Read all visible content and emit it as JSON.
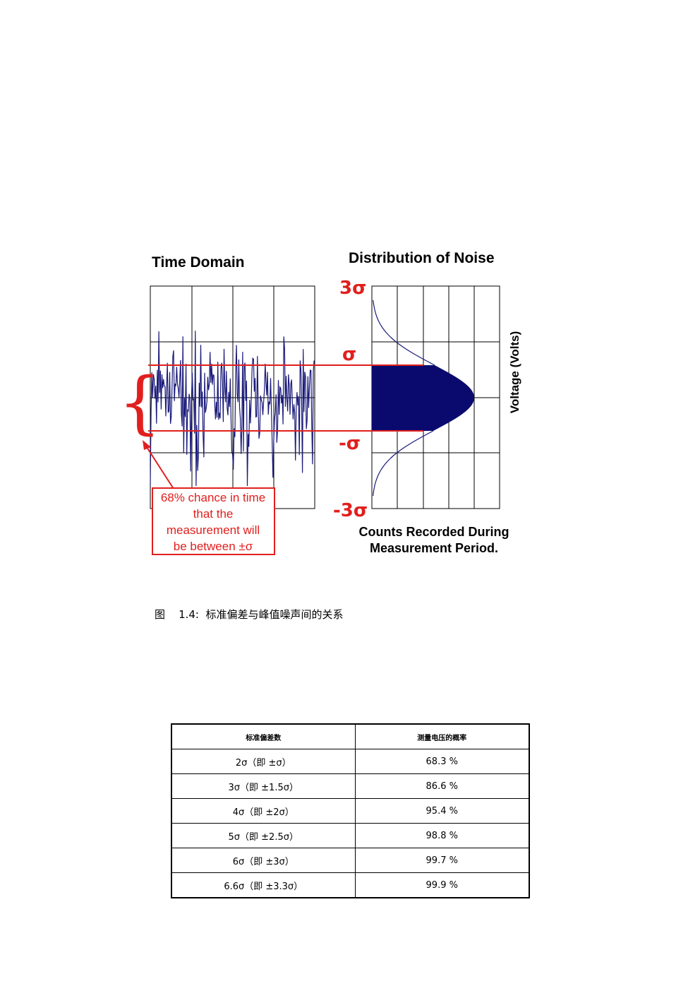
{
  "figure": {
    "time_domain_title": "Time Domain",
    "distribution_title": "Distribution of Noise",
    "sigma_labels": {
      "plus_3sigma": "3σ",
      "plus_sigma": "σ",
      "minus_sigma": "-σ",
      "minus_3sigma": "-3σ"
    },
    "voltage_axis_label": "Voltage (Volts)",
    "counts_label_line1": "Counts Recorded During",
    "counts_label_line2": "Measurement Period.",
    "callout_lines": [
      "68% chance in time",
      "that the",
      "measurement will",
      "be between ±σ"
    ],
    "brace_glyph": "{",
    "colors": {
      "noise": "#1a1a7a",
      "red": "#e0201e",
      "fill": "#0a0a6e"
    }
  },
  "caption": "图    1.4:  标准偏差与峰值噪声间的关系",
  "table": {
    "headers": [
      "标准偏差数",
      "测量电压的概率"
    ],
    "rows": [
      [
        "2σ（即 ±σ）",
        "68.3 %"
      ],
      [
        "3σ（即 ±1.5σ）",
        "86.6 %"
      ],
      [
        "4σ（即  ±2σ）",
        "95.4 %"
      ],
      [
        "5σ（即 ±2.5σ）",
        "98.8 %"
      ],
      [
        "6σ（即 ±3σ）",
        "99.7 %"
      ],
      [
        "6.6σ（即  ±3.3σ）",
        "99.9 %"
      ]
    ]
  }
}
